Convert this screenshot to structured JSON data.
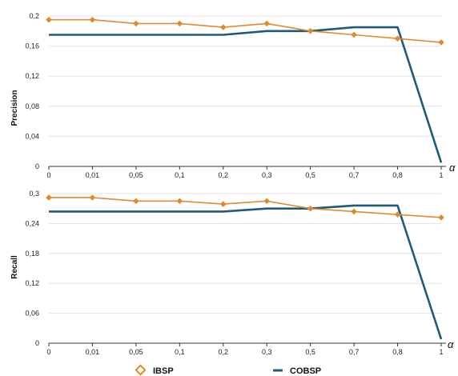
{
  "colors": {
    "ibsp": "#e08a2e",
    "cobsp": "#1f5a78",
    "grid": "#e3e3e3",
    "axis": "#333333"
  },
  "legend": {
    "ibsp_label": "IBSP",
    "cobsp_label": "COBSP",
    "ibsp_marker": "diamond-outline",
    "cobsp_marker": "line"
  },
  "x_axis_symbol": "α",
  "chart_data": [
    {
      "type": "line",
      "ylabel": "Precision",
      "categories": [
        "0",
        "0,01",
        "0,05",
        "0,1",
        "0,2",
        "0,3",
        "0,5",
        "0,7",
        "0,8",
        "1"
      ],
      "yticks": [
        "0",
        "0,04",
        "0,08",
        "0,12",
        "0,16",
        "0,2"
      ],
      "ylim": [
        0,
        0.2
      ],
      "grid": true,
      "series": [
        {
          "name": "IBSP",
          "color": "#e08a2e",
          "marker": "diamond",
          "values": [
            0.195,
            0.195,
            0.19,
            0.19,
            0.185,
            0.19,
            0.18,
            0.175,
            0.17,
            0.165
          ]
        },
        {
          "name": "COBSP",
          "color": "#1f5a78",
          "marker": "none",
          "values": [
            0.175,
            0.175,
            0.175,
            0.175,
            0.175,
            0.18,
            0.18,
            0.185,
            0.185,
            0.005
          ]
        }
      ]
    },
    {
      "type": "line",
      "ylabel": "Recall",
      "categories": [
        "0",
        "0,01",
        "0,05",
        "0,1",
        "0,2",
        "0,3",
        "0,5",
        "0,7",
        "0,8",
        "1"
      ],
      "yticks": [
        "0",
        "0,06",
        "0,12",
        "0,18",
        "0,24",
        "0,3"
      ],
      "ylim": [
        0,
        0.3
      ],
      "grid": true,
      "series": [
        {
          "name": "IBSP",
          "color": "#e08a2e",
          "marker": "diamond",
          "values": [
            0.292,
            0.292,
            0.285,
            0.285,
            0.279,
            0.285,
            0.27,
            0.264,
            0.258,
            0.252
          ]
        },
        {
          "name": "COBSP",
          "color": "#1f5a78",
          "marker": "none",
          "values": [
            0.264,
            0.264,
            0.264,
            0.264,
            0.264,
            0.27,
            0.27,
            0.276,
            0.276,
            0.008
          ]
        }
      ]
    }
  ]
}
